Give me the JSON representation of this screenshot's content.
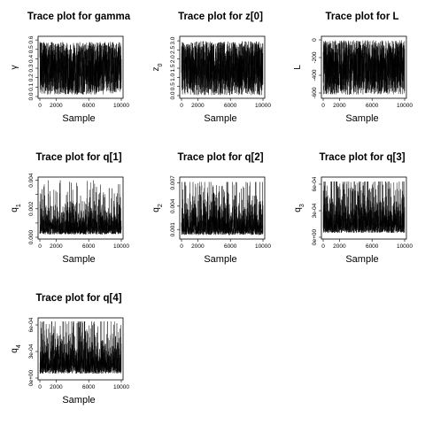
{
  "chart_data": [
    {
      "type": "line",
      "title": "Trace plot for  gamma",
      "xlabel": "Sample",
      "ylabel": "γ",
      "xlim": [
        0,
        10000
      ],
      "ylim": [
        0,
        0.62
      ],
      "xticks": [
        0,
        2000,
        6000,
        10000
      ],
      "yticks": [
        0.0,
        0.1,
        0.2,
        0.3,
        0.4,
        0.5,
        0.6
      ],
      "ytick_labels": [
        "0.0",
        "0.1",
        "0.2",
        "0.3",
        "0.4",
        "0.5",
        "0.6"
      ],
      "series": [
        {
          "n_samples": 10000,
          "min": 0.02,
          "max": 0.58,
          "mean": 0.3,
          "spread": "uniform",
          "warmup_value": 0.58
        }
      ]
    },
    {
      "type": "line",
      "title": "Trace plot for  z[0]",
      "xlabel": "Sample",
      "ylabel": "z0",
      "xlim": [
        0,
        10000
      ],
      "ylim": [
        -0.05,
        3.15
      ],
      "xticks": [
        0,
        2000,
        6000,
        10000
      ],
      "yticks": [
        0.0,
        0.5,
        1.0,
        1.5,
        2.0,
        2.5,
        3.0
      ],
      "ytick_labels": [
        "0.0",
        "0.5",
        "1.0",
        "1.5",
        "2.0",
        "2.5",
        "3.0"
      ],
      "series": [
        {
          "n_samples": 10000,
          "min": 0.02,
          "max": 2.98,
          "mean": 1.5,
          "spread": "uniform"
        }
      ]
    },
    {
      "type": "line",
      "title": "Trace plot for  L",
      "xlabel": "Sample",
      "ylabel": "L",
      "xlim": [
        0,
        10000
      ],
      "ylim": [
        -640,
        20
      ],
      "xticks": [
        0,
        2000,
        6000,
        10000
      ],
      "yticks": [
        -600,
        -400,
        -200,
        0
      ],
      "ytick_labels": [
        "-600",
        "-400",
        "-200",
        "0"
      ],
      "series": [
        {
          "n_samples": 10000,
          "min": -620,
          "max": -5,
          "mean": -310,
          "spread": "uniform"
        }
      ]
    },
    {
      "type": "line",
      "title": "Trace plot for  q[1]",
      "xlabel": "Sample",
      "ylabel": "q1",
      "xlim": [
        0,
        10000
      ],
      "ylim": [
        0,
        0.0041
      ],
      "xticks": [
        0,
        2000,
        6000,
        10000
      ],
      "yticks": [
        0.0,
        0.001,
        0.002,
        0.003,
        0.004
      ],
      "ytick_labels": [
        "0.000",
        "",
        "0.002",
        "",
        "0.004"
      ],
      "series": [
        {
          "n_samples": 10000,
          "min": 0.0002,
          "max": 0.004,
          "mean": 0.0011,
          "spread": "skewed",
          "typical_peak": 0.0028
        }
      ]
    },
    {
      "type": "line",
      "title": "Trace plot for  q[2]",
      "xlabel": "Sample",
      "ylabel": "q2",
      "xlim": [
        0,
        10000
      ],
      "ylim": [
        0,
        0.0075
      ],
      "xticks": [
        0,
        2000,
        6000,
        10000
      ],
      "yticks": [
        0.001,
        0.004,
        0.007
      ],
      "ytick_labels": [
        "0.001",
        "0.004",
        "0.007"
      ],
      "series": [
        {
          "n_samples": 10000,
          "min": 0.0003,
          "max": 0.0071,
          "mean": 0.0024,
          "spread": "skewed",
          "typical_peak": 0.0055
        }
      ]
    },
    {
      "type": "line",
      "title": "Trace plot for  q[3]",
      "xlabel": "Sample",
      "ylabel": "q3",
      "xlim": [
        0,
        10000
      ],
      "ylim": [
        0,
        0.00066
      ],
      "xticks": [
        0,
        2000,
        6000,
        10000
      ],
      "yticks": [
        0.0,
        0.0003,
        0.0006
      ],
      "ytick_labels": [
        "0e+00",
        "3e-04",
        "6e-04"
      ],
      "series": [
        {
          "n_samples": 10000,
          "min": 5e-05,
          "max": 0.00063,
          "mean": 0.00025,
          "spread": "skewed",
          "typical_peak": 0.00052
        }
      ]
    },
    {
      "type": "line",
      "title": "Trace plot for  q[4]",
      "xlabel": "Sample",
      "ylabel": "q4",
      "xlim": [
        0,
        10000
      ],
      "ylim": [
        0,
        0.00066
      ],
      "xticks": [
        0,
        2000,
        6000,
        10000
      ],
      "yticks": [
        0.0,
        0.0003,
        0.0006
      ],
      "ytick_labels": [
        "0e+00",
        "3e-04",
        "6e-04"
      ],
      "series": [
        {
          "n_samples": 10000,
          "min": 5e-05,
          "max": 0.00064,
          "mean": 0.00025,
          "spread": "skewed",
          "typical_peak": 0.00055
        }
      ]
    }
  ]
}
